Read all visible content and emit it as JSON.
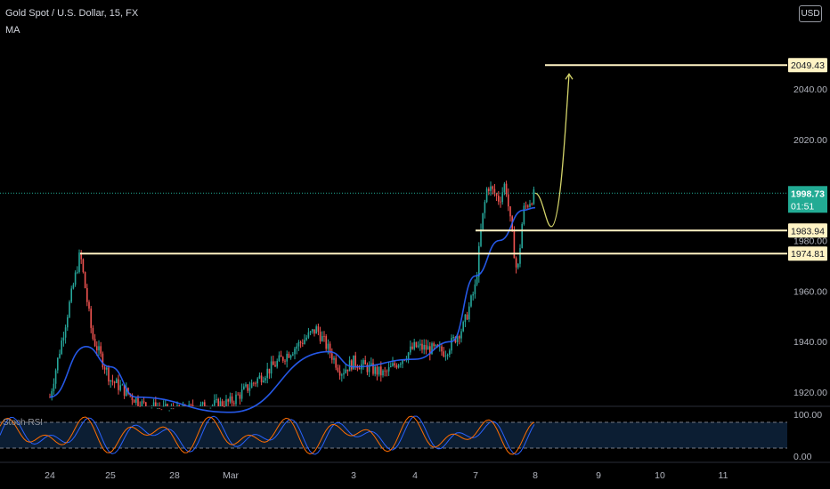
{
  "header": {
    "title": "Gold Spot / U.S. Dollar, 15, FX",
    "indicator": "MA",
    "currency": "USD"
  },
  "colors": {
    "background": "#000000",
    "up": "#26a69a",
    "down": "#ef5350",
    "ma": "#2962ff",
    "level": "#fff3c4",
    "projection": "#d4d46a",
    "last_price_badge": "#22ab94",
    "stoch_k": "#2962ff",
    "stoch_d": "#ff6d00",
    "axis_text": "#b2b5be"
  },
  "chart_data": [
    {
      "type": "candlestick",
      "title": "Gold Spot / U.S. Dollar, 15, FX",
      "y_ticks": [
        "1920.00",
        "1940.00",
        "1960.00",
        "1980.00",
        "2000.00",
        "2020.00",
        "2040.00"
      ],
      "x_ticks": [
        "24",
        "25",
        "28",
        "Mar",
        "3",
        "4",
        "7",
        "8",
        "9",
        "10",
        "11"
      ],
      "ylim": [
        1915,
        2053
      ],
      "close_path": [
        [
          "24",
          1918
        ],
        [
          "24.5",
          1975
        ],
        [
          "24.7",
          1942
        ],
        [
          "25",
          1925
        ],
        [
          "25.5",
          1915
        ],
        [
          "28",
          1912
        ],
        [
          "Mar",
          1916
        ],
        [
          "Mar.7",
          1945
        ],
        [
          "Mar.9",
          1928
        ],
        [
          "3",
          1932
        ],
        [
          "3.5",
          1927
        ],
        [
          "4",
          1938
        ],
        [
          "4.5",
          1936
        ],
        [
          "4.8",
          1946
        ],
        [
          "7",
          1962
        ],
        [
          "7.1",
          1986
        ],
        [
          "7.2",
          2002
        ],
        [
          "7.4",
          1996
        ],
        [
          "7.5",
          2003
        ],
        [
          "7.6",
          1984
        ],
        [
          "7.7",
          1966
        ],
        [
          "7.8",
          1992
        ],
        [
          "8",
          1998.73
        ]
      ],
      "ma_path": [
        [
          "24",
          1918
        ],
        [
          "24.6",
          1938
        ],
        [
          "25",
          1930
        ],
        [
          "25.4",
          1918
        ],
        [
          "Mar",
          1912
        ],
        [
          "Mar.8",
          1936
        ],
        [
          "3",
          1930
        ],
        [
          "4",
          1933
        ],
        [
          "4.6",
          1940
        ],
        [
          "7",
          1966
        ],
        [
          "7.4",
          1980
        ],
        [
          "7.8",
          1992
        ],
        [
          "8",
          1993
        ]
      ],
      "levels": [
        {
          "label": "2049.43",
          "value": 2049.43
        },
        {
          "label": "1983.94",
          "value": 1983.94
        },
        {
          "label": "1974.81",
          "value": 1974.81
        }
      ],
      "last_price": {
        "label": "1998.73",
        "value": 1998.73,
        "countdown": "01:51"
      },
      "projection": {
        "from": 1998.73,
        "dip": 1985.5,
        "target": 2049.43
      }
    },
    {
      "type": "line",
      "title": "Stoch RSI",
      "y_ticks": [
        "100.00",
        "0.00"
      ],
      "ylim": [
        0,
        100
      ],
      "bands": [
        20,
        80
      ]
    }
  ]
}
